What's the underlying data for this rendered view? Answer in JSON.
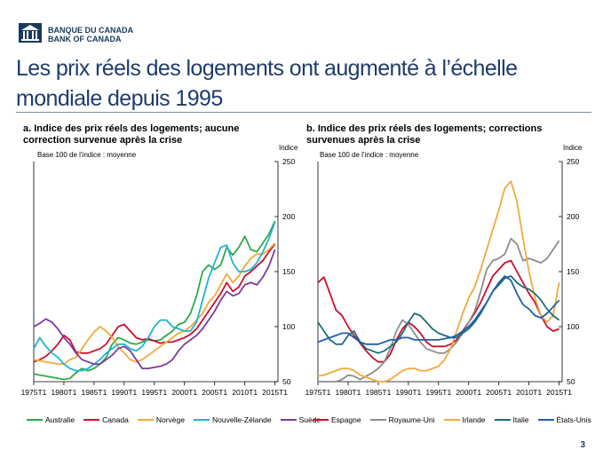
{
  "header": {
    "logo_line1": "BANQUE DU CANADA",
    "logo_line2": "BANK OF CANADA",
    "title": "Les prix réels des logements ont augmenté à l’échelle mondiale depuis 1995",
    "page_number": "3"
  },
  "chart_data": [
    {
      "type": "line",
      "title": "a. Indice des prix réels des logements; aucune correction survenue après la crise",
      "note": "Base 100 de l’indice : moyenne",
      "ylabel": "Indice",
      "ylim": [
        50,
        250
      ],
      "yticks": [
        "50",
        "100",
        "150",
        "200",
        "250"
      ],
      "xlim": [
        1975,
        2015.5
      ],
      "xticks": [
        "1975T1",
        "1980T1",
        "1985T1",
        "1990T1",
        "1995T1",
        "2000T1",
        "2005T1",
        "2010T1",
        "2015T1"
      ],
      "x": [
        1975,
        1976,
        1977,
        1978,
        1979,
        1980,
        1981,
        1982,
        1983,
        1984,
        1985,
        1986,
        1987,
        1988,
        1989,
        1990,
        1991,
        1992,
        1993,
        1994,
        1995,
        1996,
        1997,
        1998,
        1999,
        2000,
        2001,
        2002,
        2003,
        2004,
        2005,
        2006,
        2007,
        2008,
        2009,
        2010,
        2011,
        2012,
        2013,
        2014,
        2015
      ],
      "series": [
        {
          "name": "Australie",
          "color": "#2eaa4a",
          "values": [
            57,
            56,
            55,
            54,
            53,
            52,
            53,
            58,
            62,
            60,
            62,
            66,
            72,
            84,
            90,
            88,
            85,
            84,
            86,
            88,
            87,
            88,
            92,
            96,
            102,
            104,
            112,
            128,
            150,
            156,
            152,
            156,
            172,
            165,
            172,
            182,
            170,
            168,
            176,
            184,
            196
          ]
        },
        {
          "name": "Canada",
          "color": "#c8102e",
          "values": [
            68,
            70,
            73,
            78,
            84,
            92,
            88,
            77,
            76,
            76,
            78,
            80,
            84,
            92,
            100,
            102,
            96,
            90,
            88,
            89,
            87,
            85,
            86,
            86,
            88,
            90,
            93,
            98,
            106,
            114,
            122,
            130,
            140,
            132,
            136,
            146,
            150,
            155,
            160,
            168,
            175
          ]
        },
        {
          "name": "Norvège",
          "color": "#f2a93b",
          "values": [
            70,
            69,
            68,
            67,
            66,
            66,
            70,
            72,
            80,
            88,
            95,
            100,
            96,
            90,
            82,
            76,
            70,
            68,
            70,
            74,
            78,
            82,
            86,
            90,
            94,
            96,
            100,
            106,
            112,
            122,
            128,
            138,
            148,
            140,
            146,
            155,
            162,
            166,
            166,
            170,
            176
          ]
        },
        {
          "name": "Nouvelle-Zélande",
          "color": "#1fb3d0",
          "values": [
            80,
            90,
            82,
            76,
            72,
            66,
            62,
            60,
            60,
            62,
            66,
            70,
            76,
            80,
            84,
            84,
            80,
            78,
            82,
            90,
            100,
            106,
            106,
            100,
            98,
            96,
            96,
            104,
            124,
            144,
            158,
            172,
            174,
            158,
            150,
            150,
            152,
            158,
            168,
            180,
            195
          ]
        },
        {
          "name": "Suède",
          "color": "#7a3aa0",
          "values": [
            100,
            103,
            107,
            104,
            98,
            90,
            84,
            76,
            70,
            68,
            66,
            66,
            70,
            74,
            80,
            82,
            78,
            70,
            62,
            62,
            63,
            64,
            66,
            70,
            78,
            84,
            88,
            92,
            98,
            106,
            114,
            124,
            132,
            128,
            130,
            138,
            140,
            138,
            145,
            155,
            170
          ]
        }
      ]
    },
    {
      "type": "line",
      "title": "b. Indice des prix réels des logements; corrections survenues après la crise",
      "note": "Base 100 de l’indice : moyenne",
      "ylabel": "Indice",
      "ylim": [
        50,
        250
      ],
      "yticks": [
        "50",
        "100",
        "150",
        "200",
        "250"
      ],
      "xlim": [
        1975,
        2015.5
      ],
      "xticks": [
        "1975T1",
        "1980T1",
        "1985T1",
        "1990T1",
        "1995T1",
        "2000T1",
        "2005T1",
        "2010T1",
        "2015T1"
      ],
      "x": [
        1975,
        1976,
        1977,
        1978,
        1979,
        1980,
        1981,
        1982,
        1983,
        1984,
        1985,
        1986,
        1987,
        1988,
        1989,
        1990,
        1991,
        1992,
        1993,
        1994,
        1995,
        1996,
        1997,
        1998,
        1999,
        2000,
        2001,
        2002,
        2003,
        2004,
        2005,
        2006,
        2007,
        2008,
        2009,
        2010,
        2011,
        2012,
        2013,
        2014,
        2015
      ],
      "series": [
        {
          "name": "Espagne",
          "color": "#c8102e",
          "values": [
            140,
            145,
            130,
            115,
            110,
            100,
            92,
            85,
            78,
            72,
            68,
            68,
            75,
            88,
            98,
            104,
            100,
            94,
            86,
            82,
            82,
            82,
            84,
            88,
            96,
            104,
            112,
            122,
            134,
            146,
            152,
            158,
            160,
            150,
            140,
            130,
            122,
            110,
            100,
            96,
            98
          ]
        },
        {
          "name": "Royaume-Uni",
          "color": "#8c8c8c",
          "values": [
            48,
            47,
            46,
            47,
            52,
            56,
            55,
            52,
            55,
            58,
            62,
            68,
            80,
            96,
            106,
            102,
            94,
            86,
            80,
            78,
            76,
            76,
            80,
            86,
            94,
            104,
            114,
            132,
            152,
            160,
            162,
            166,
            180,
            175,
            160,
            162,
            160,
            158,
            162,
            170,
            178
          ]
        },
        {
          "name": "Irlande",
          "color": "#f2a93b",
          "values": [
            55,
            56,
            58,
            60,
            62,
            62,
            60,
            56,
            54,
            52,
            50,
            50,
            52,
            56,
            60,
            62,
            62,
            60,
            60,
            62,
            64,
            70,
            80,
            96,
            112,
            126,
            136,
            152,
            170,
            188,
            206,
            226,
            232,
            214,
            180,
            150,
            126,
            110,
            104,
            110,
            140
          ]
        },
        {
          "name": "Italie",
          "color": "#1b6e7a",
          "values": [
            104,
            96,
            88,
            84,
            84,
            92,
            96,
            86,
            80,
            78,
            76,
            78,
            82,
            86,
            94,
            104,
            112,
            110,
            104,
            98,
            94,
            92,
            90,
            90,
            94,
            98,
            104,
            112,
            122,
            132,
            138,
            144,
            146,
            140,
            136,
            134,
            130,
            124,
            116,
            110,
            106
          ]
        },
        {
          "name": "États-Unis",
          "color": "#1f5fa8",
          "values": [
            86,
            88,
            90,
            92,
            94,
            94,
            90,
            86,
            84,
            84,
            84,
            86,
            88,
            88,
            90,
            90,
            88,
            88,
            88,
            88,
            88,
            89,
            90,
            92,
            96,
            100,
            106,
            114,
            122,
            132,
            140,
            146,
            142,
            130,
            120,
            116,
            110,
            108,
            112,
            118,
            124
          ]
        }
      ]
    }
  ]
}
